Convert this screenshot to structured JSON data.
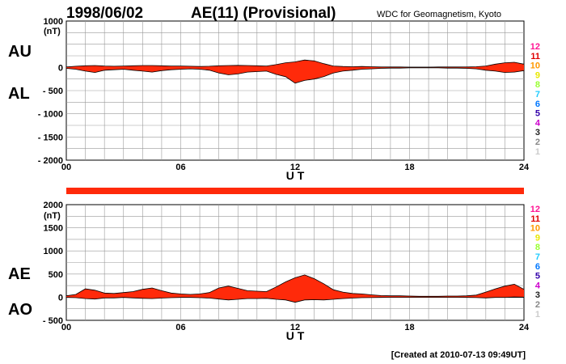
{
  "header": {
    "date": "1998/06/02",
    "title": "AE(11) (Provisional)",
    "source": "WDC for Geomagnetism, Kyoto"
  },
  "footer": {
    "created": "[Created at 2010-07-13 09:49UT]"
  },
  "station_count": {
    "labels": [
      "12",
      "11",
      "10",
      "9",
      "8",
      "7",
      "6",
      "5",
      "4",
      "3",
      "2",
      "1"
    ],
    "colors": [
      "#ff1493",
      "#e00000",
      "#ff9900",
      "#e8e800",
      "#99ff33",
      "#22ccff",
      "#0077ff",
      "#3300aa",
      "#cc00cc",
      "#222222",
      "#888888",
      "#cccccc"
    ]
  },
  "colors": {
    "fill": "#ff2a0a",
    "bar": "#ff2a0a"
  },
  "chart_data": [
    {
      "type": "area",
      "unit_label": "(nT)",
      "series_labels": {
        "upper": "AU",
        "lower": "AL"
      },
      "xlabel": "U T",
      "x_ticks": [
        "00",
        "06",
        "12",
        "18",
        "24"
      ],
      "ylim": [
        -2000,
        1000
      ],
      "y_ticks": [
        1000,
        500,
        0,
        -500,
        -1000,
        -1500,
        -2000
      ],
      "y_tick_labels": [
        "1000",
        "",
        "0",
        "- 500",
        "- 1000",
        "- 1500",
        "- 2000"
      ],
      "grid": true,
      "x": [
        0,
        0.5,
        1,
        1.5,
        2,
        2.5,
        3,
        3.5,
        4,
        4.5,
        5,
        5.5,
        6,
        6.5,
        7,
        7.5,
        8,
        8.5,
        9,
        9.5,
        10,
        10.5,
        11,
        11.5,
        12,
        12.5,
        13,
        13.5,
        14,
        14.5,
        15,
        15.5,
        16,
        16.5,
        17,
        17.5,
        18,
        18.5,
        19,
        19.5,
        20,
        20.5,
        21,
        21.5,
        22,
        22.5,
        23,
        23.5,
        24
      ],
      "series": [
        {
          "name": "AU",
          "values": [
            10,
            25,
            35,
            40,
            30,
            25,
            30,
            35,
            40,
            40,
            35,
            30,
            30,
            25,
            20,
            25,
            35,
            40,
            45,
            40,
            35,
            30,
            60,
            100,
            120,
            160,
            140,
            80,
            30,
            20,
            15,
            20,
            15,
            10,
            10,
            10,
            5,
            5,
            5,
            10,
            10,
            10,
            10,
            15,
            30,
            70,
            100,
            110,
            70
          ]
        },
        {
          "name": "AL",
          "values": [
            -20,
            -40,
            -80,
            -110,
            -60,
            -50,
            -40,
            -60,
            -80,
            -100,
            -70,
            -50,
            -40,
            -30,
            -40,
            -60,
            -120,
            -160,
            -140,
            -100,
            -90,
            -80,
            -150,
            -200,
            -340,
            -280,
            -250,
            -200,
            -120,
            -80,
            -60,
            -40,
            -30,
            -20,
            -15,
            -15,
            -10,
            -10,
            -10,
            -10,
            -15,
            -15,
            -20,
            -30,
            -60,
            -80,
            -110,
            -100,
            -70
          ]
        }
      ]
    },
    {
      "type": "area",
      "unit_label": "(nT)",
      "series_labels": {
        "upper": "AE",
        "lower": "AO"
      },
      "xlabel": "U T",
      "x_ticks": [
        "00",
        "06",
        "12",
        "18",
        "24"
      ],
      "ylim": [
        -500,
        2000
      ],
      "y_ticks": [
        2000,
        1500,
        1000,
        500,
        0,
        -500
      ],
      "y_tick_labels": [
        "2000",
        "1500",
        "1000",
        "500",
        "0",
        "- 500"
      ],
      "grid": true,
      "x": [
        0,
        0.5,
        1,
        1.5,
        2,
        2.5,
        3,
        3.5,
        4,
        4.5,
        5,
        5.5,
        6,
        6.5,
        7,
        7.5,
        8,
        8.5,
        9,
        9.5,
        10,
        10.5,
        11,
        11.5,
        12,
        12.5,
        13,
        13.5,
        14,
        14.5,
        15,
        15.5,
        16,
        16.5,
        17,
        17.5,
        18,
        18.5,
        19,
        19.5,
        20,
        20.5,
        21,
        21.5,
        22,
        22.5,
        23,
        23.5,
        24
      ],
      "series": [
        {
          "name": "AE",
          "values": [
            30,
            60,
            180,
            150,
            90,
            80,
            100,
            120,
            170,
            200,
            140,
            90,
            70,
            60,
            70,
            100,
            200,
            240,
            190,
            140,
            130,
            120,
            220,
            330,
            420,
            480,
            400,
            290,
            160,
            110,
            80,
            70,
            50,
            35,
            30,
            30,
            25,
            20,
            20,
            20,
            25,
            25,
            30,
            45,
            110,
            180,
            240,
            280,
            170
          ]
        },
        {
          "name": "AO",
          "values": [
            -5,
            -10,
            -30,
            -40,
            -15,
            -15,
            -5,
            -15,
            -25,
            -30,
            -20,
            -10,
            -5,
            -5,
            -10,
            -20,
            -40,
            -60,
            -45,
            -30,
            -30,
            -25,
            -45,
            -60,
            -110,
            -60,
            -55,
            -60,
            -45,
            -30,
            -20,
            -10,
            -8,
            -5,
            -3,
            -3,
            -3,
            -3,
            -3,
            -3,
            -3,
            -3,
            -5,
            -8,
            -15,
            -5,
            -5,
            5,
            0
          ]
        }
      ]
    }
  ]
}
